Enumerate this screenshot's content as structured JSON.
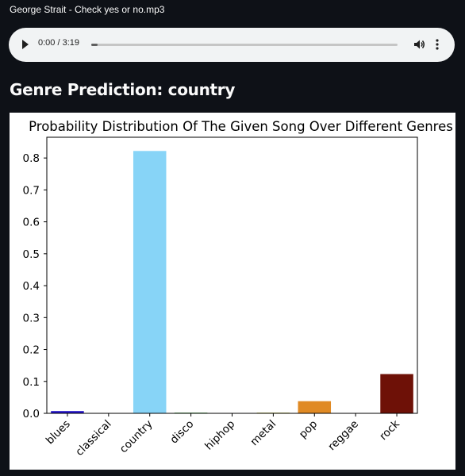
{
  "file": {
    "name": "George Strait - Check yes or no.mp3"
  },
  "player": {
    "time_display": "0:00 / 3:19",
    "progress": 0.02
  },
  "heading": "Genre Prediction: country",
  "chart_data": {
    "type": "bar",
    "title": "Probability Distribution Of The Given Song Over Different Genres",
    "xlabel": "",
    "ylabel": "",
    "categories": [
      "blues",
      "classical",
      "country",
      "disco",
      "hiphop",
      "metal",
      "pop",
      "reggae",
      "rock"
    ],
    "values": [
      0.007,
      0.0,
      0.822,
      0.002,
      0.0,
      0.002,
      0.038,
      0.0,
      0.123
    ],
    "colors": [
      "#2514c7",
      "#7f7f7f",
      "#87d4f7",
      "#2ca02c",
      "#c9c9c9",
      "#bcbd22",
      "#e08a24",
      "#cc4c6e",
      "#6e1107"
    ],
    "yticks": [
      "0.0",
      "0.1",
      "0.2",
      "0.3",
      "0.4",
      "0.5",
      "0.6",
      "0.7",
      "0.8"
    ],
    "ylim": [
      0,
      0.865
    ],
    "grid": false,
    "legend": "none"
  },
  "icons": {
    "play": "play-icon",
    "volume": "volume-icon",
    "more": "more-vert-icon"
  }
}
